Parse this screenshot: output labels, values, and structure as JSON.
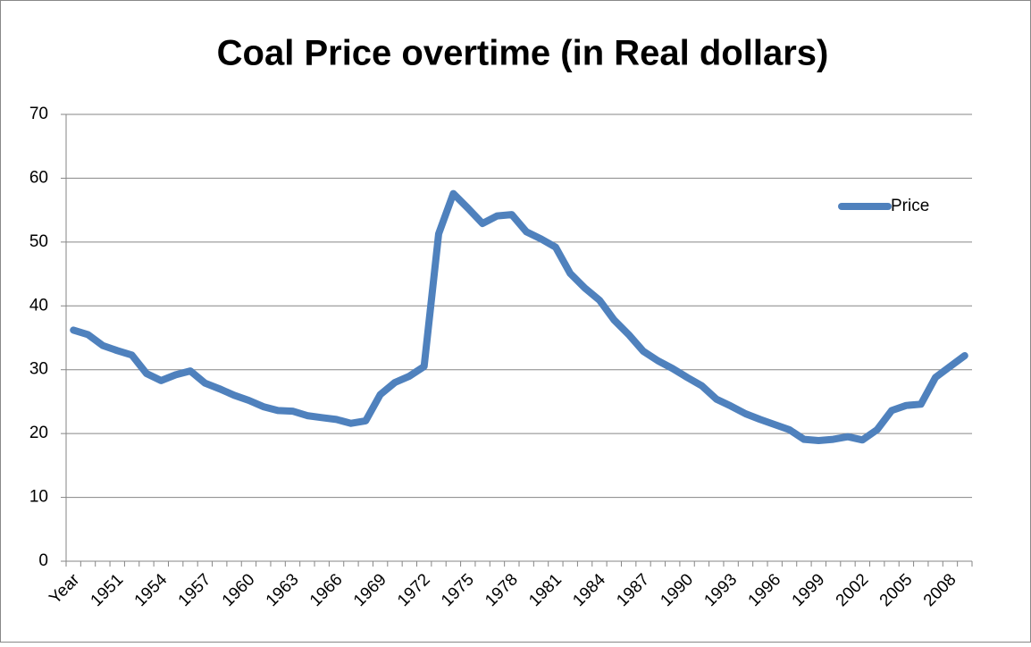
{
  "chart_data": {
    "type": "line",
    "title": "Coal Price overtime (in Real dollars)",
    "categories": [
      "Year",
      null,
      null,
      "1951",
      null,
      null,
      "1954",
      null,
      null,
      "1957",
      null,
      null,
      "1960",
      null,
      null,
      "1963",
      null,
      null,
      "1966",
      null,
      null,
      "1969",
      null,
      null,
      "1972",
      null,
      null,
      "1975",
      null,
      null,
      "1978",
      null,
      null,
      "1981",
      null,
      null,
      "1984",
      null,
      null,
      "1987",
      null,
      null,
      "1990",
      null,
      null,
      "1993",
      null,
      null,
      "1996",
      null,
      null,
      "1999",
      null,
      null,
      "2002",
      null,
      null,
      "2005",
      null,
      null,
      "2008",
      null
    ],
    "series": [
      {
        "name": "Price",
        "color": "#4f81bd",
        "values": [
          36.2,
          35.5,
          33.8,
          33.0,
          32.3,
          29.4,
          28.3,
          29.2,
          29.8,
          27.9,
          27.0,
          26.0,
          25.2,
          24.2,
          23.6,
          23.5,
          22.8,
          22.5,
          22.2,
          21.6,
          22.0,
          26.1,
          28.0,
          29.0,
          30.5,
          51.3,
          57.6,
          55.3,
          52.9,
          54.1,
          54.3,
          51.6,
          50.5,
          49.2,
          45.1,
          42.8,
          40.9,
          37.8,
          35.5,
          32.9,
          31.4,
          30.2,
          28.8,
          27.5,
          25.4,
          24.3,
          23.1,
          22.2,
          21.4,
          20.6,
          19.1,
          18.9,
          19.1,
          19.5,
          19.0,
          20.6,
          23.6,
          24.4,
          24.6,
          28.8,
          30.5,
          32.2
        ]
      }
    ],
    "ylim": [
      0,
      70
    ],
    "yticks": [
      0,
      10,
      20,
      30,
      40,
      50,
      60,
      70
    ],
    "grid": true,
    "legend": "right"
  }
}
